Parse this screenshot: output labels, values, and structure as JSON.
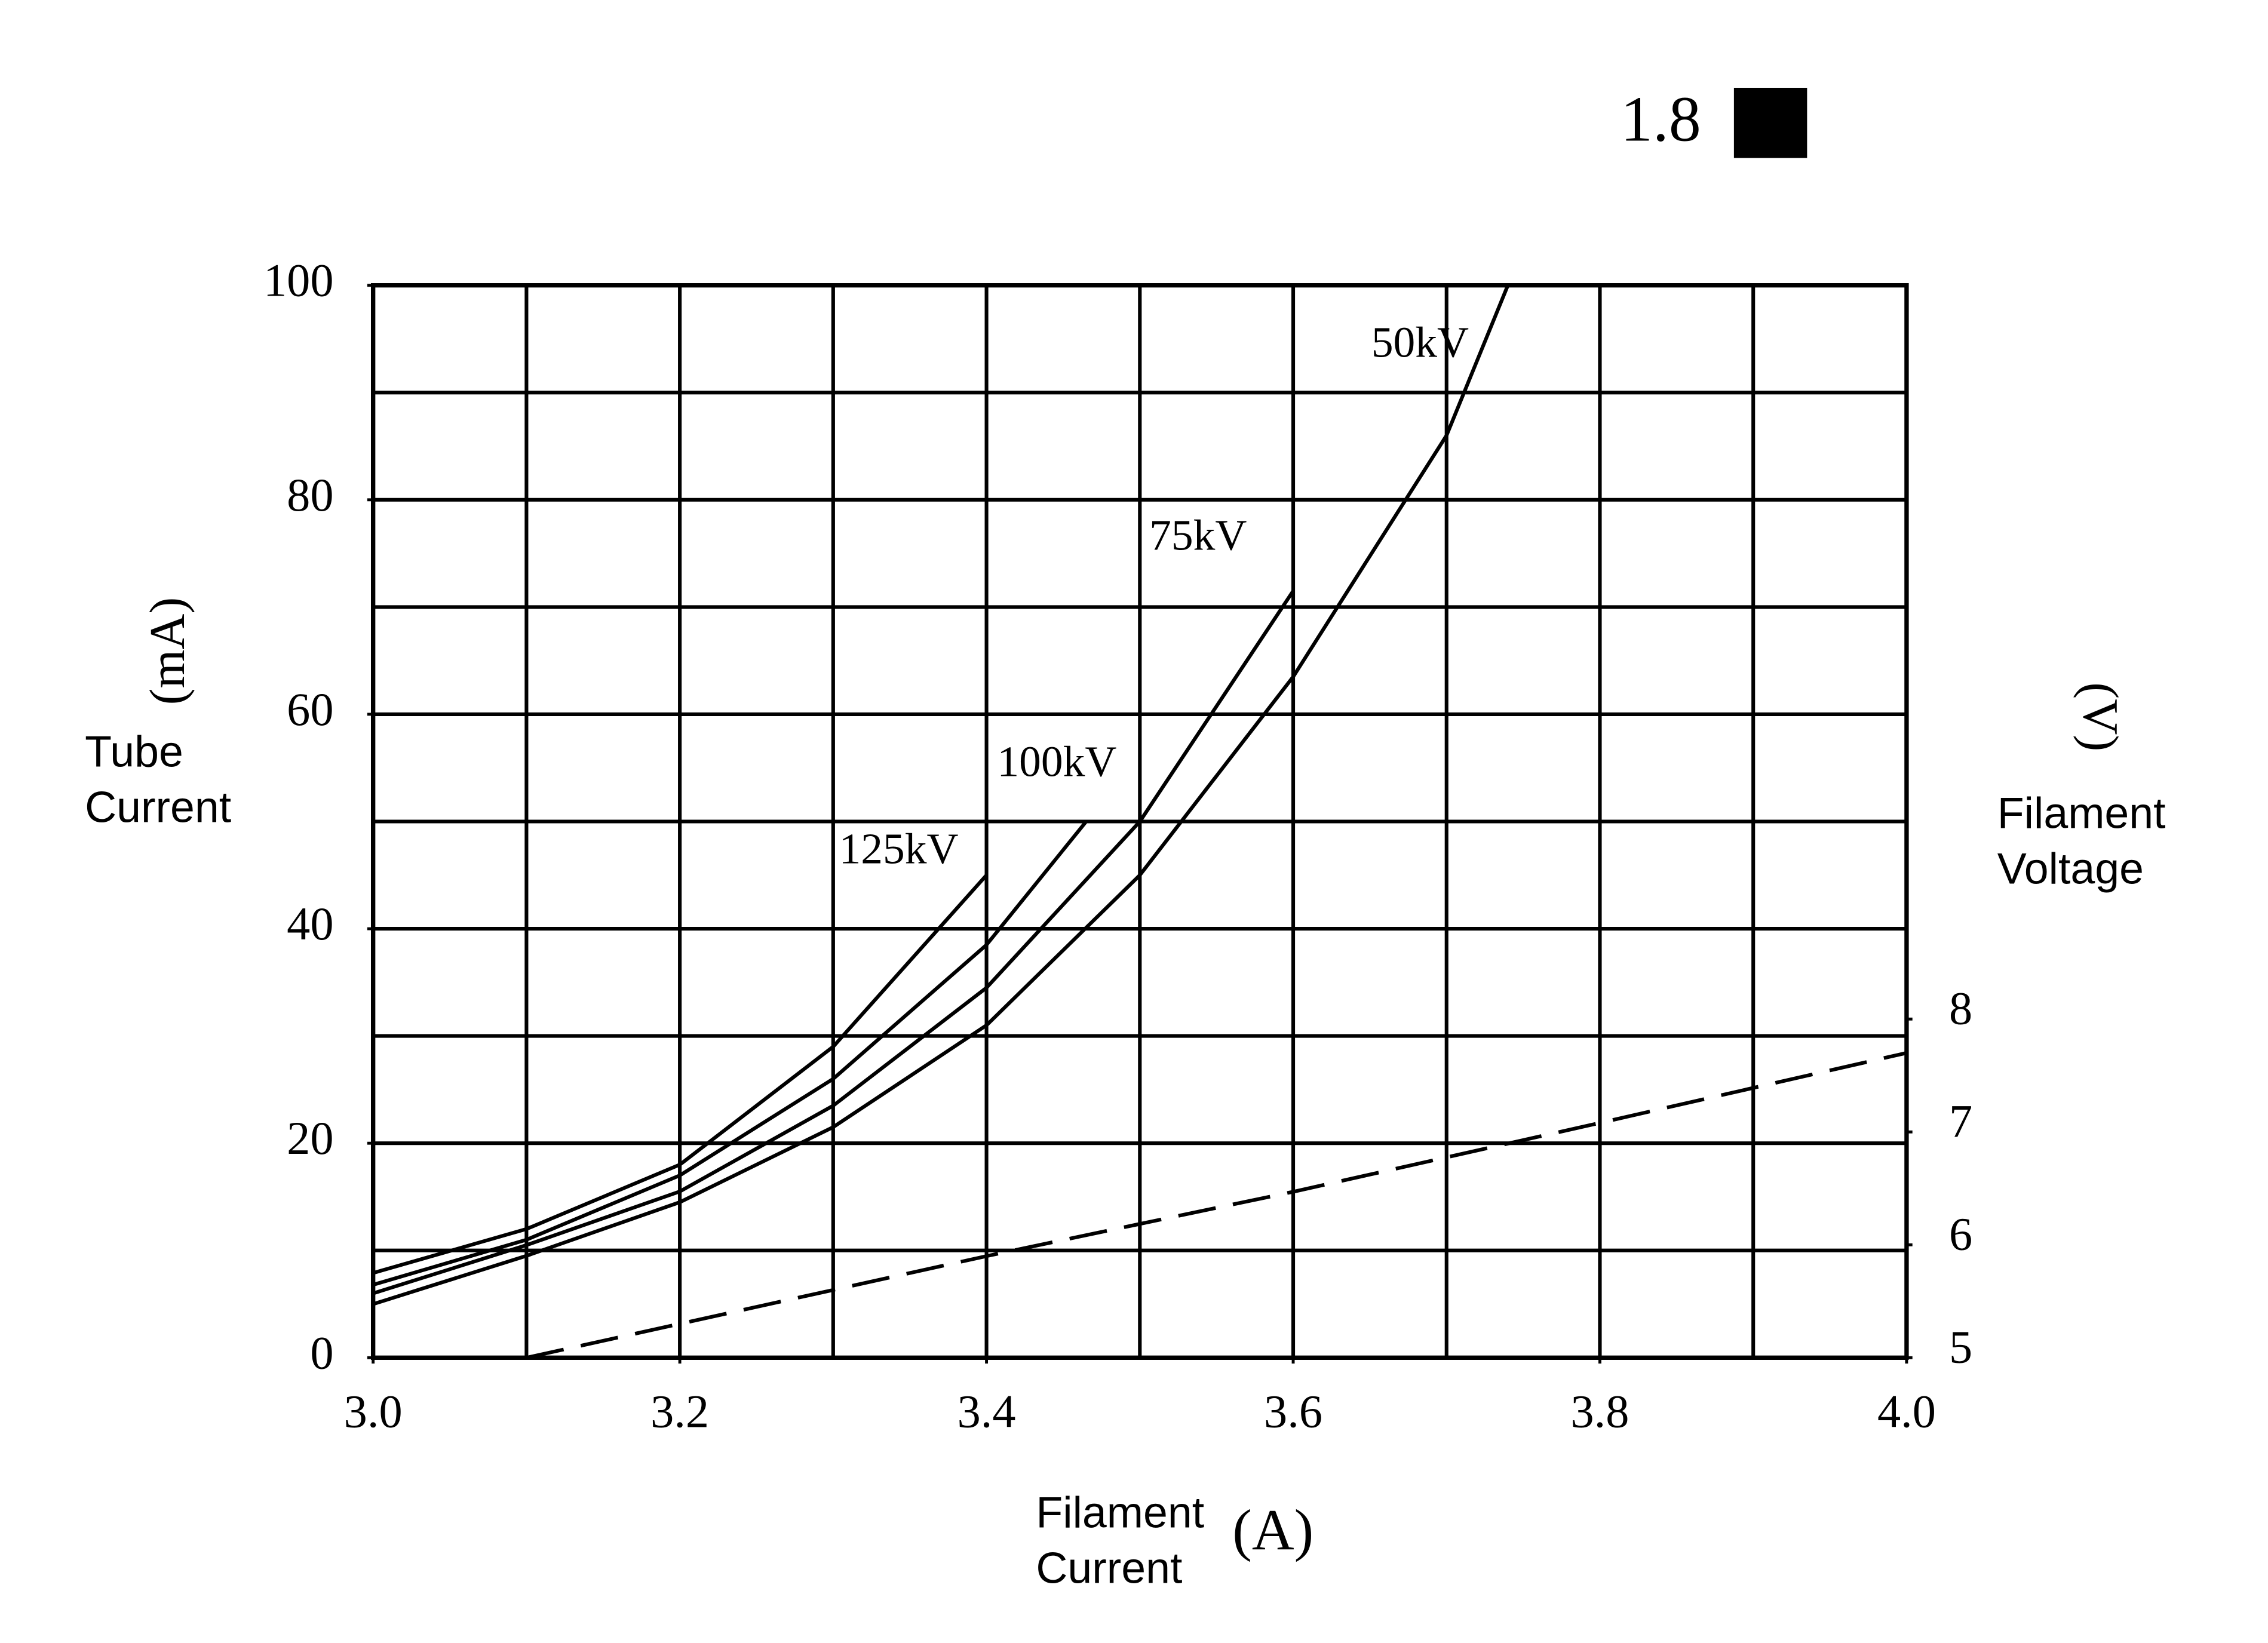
{
  "chart_data": {
    "type": "line",
    "annotation": "1.8",
    "x_label": [
      "Filament",
      "Current"
    ],
    "x_unit": "(A)",
    "y_label": [
      "Tube",
      "Current"
    ],
    "y_unit": "(mA)",
    "y2_label": [
      "Filament",
      "Voltage"
    ],
    "y2_unit": "(V)",
    "xlim": [
      3.0,
      4.0
    ],
    "xticks": [
      {
        "value": 3.0,
        "label": "3.0"
      },
      3.2,
      3.4,
      3.6,
      3.8,
      {
        "value": 4.0,
        "label": "4.0"
      }
    ],
    "ylim": [
      0,
      100
    ],
    "yticks": [
      0,
      20,
      40,
      60,
      80,
      100
    ],
    "y2lim": [
      5,
      14.5
    ],
    "y2ticks": [
      5,
      6,
      7,
      8
    ],
    "grid": true,
    "xgrid": [
      3.0,
      3.1,
      3.2,
      3.3,
      3.4,
      3.5,
      3.6,
      3.7,
      3.8,
      3.9,
      4.0
    ],
    "ygrid": [
      0,
      10,
      20,
      30,
      40,
      50,
      60,
      70,
      80,
      90,
      100
    ],
    "series": [
      {
        "name": "125kV",
        "color": "#000000",
        "x": [
          3.0,
          3.1,
          3.2,
          3.3,
          3.4
        ],
        "values": [
          7.9,
          12,
          18,
          29,
          45
        ]
      },
      {
        "name": "100kV",
        "color": "#000000",
        "x": [
          3.0,
          3.1,
          3.2,
          3.3,
          3.4,
          3.465
        ],
        "values": [
          6.8,
          11,
          17,
          26,
          38.5,
          50
        ]
      },
      {
        "name": "75kV",
        "color": "#000000",
        "x": [
          3.0,
          3.1,
          3.2,
          3.3,
          3.4,
          3.5,
          3.6
        ],
        "values": [
          6,
          10.5,
          15.5,
          23.5,
          34.5,
          50,
          71.5
        ]
      },
      {
        "name": "50kV",
        "color": "#000000",
        "x": [
          3.0,
          3.1,
          3.2,
          3.3,
          3.4,
          3.5,
          3.6,
          3.7,
          3.74
        ],
        "values": [
          5,
          9.5,
          14.5,
          21.5,
          31,
          45,
          63.5,
          86,
          100
        ]
      },
      {
        "color": "#000000",
        "axis": "y2",
        "style": "dashed",
        "x": [
          3.1,
          3.2,
          3.4,
          3.6,
          3.8,
          4.0
        ],
        "values": [
          5.0,
          5.3,
          5.9,
          6.47,
          7.08,
          7.7
        ]
      }
    ]
  }
}
